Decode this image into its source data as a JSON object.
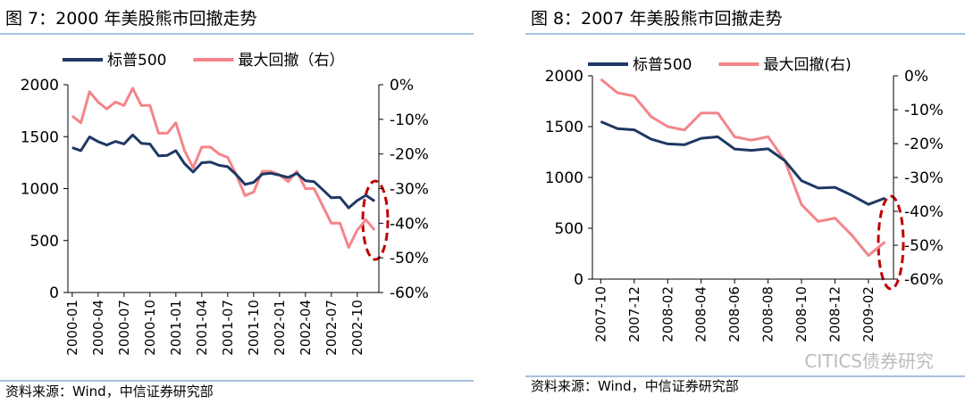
{
  "chart_data": [
    {
      "type": "line",
      "title": "图 7：2000 年美股熊市回撤走势",
      "categories": [
        "2000-01",
        null,
        null,
        "2000-04",
        null,
        null,
        "2000-07",
        null,
        null,
        "2000-10",
        null,
        null,
        "2001-01",
        null,
        null,
        "2001-04",
        null,
        null,
        "2001-07",
        null,
        null,
        "2001-10",
        null,
        null,
        "2002-01",
        null,
        null,
        "2002-04",
        null,
        null,
        "2002-07",
        null,
        null,
        "2002-10",
        null,
        null
      ],
      "series": [
        {
          "name": "标普500",
          "color": "#1f3864",
          "values": [
            1394,
            1366,
            1498,
            1452,
            1420,
            1454,
            1430,
            1517,
            1436,
            1429,
            1315,
            1320,
            1366,
            1240,
            1160,
            1249,
            1256,
            1224,
            1211,
            1134,
            1040,
            1060,
            1139,
            1148,
            1130,
            1107,
            1147,
            1076,
            1067,
            990,
            912,
            916,
            815,
            885,
            936,
            880
          ]
        },
        {
          "name": "最大回撤（右）",
          "color": "#f4858a",
          "axis": "y2",
          "values": [
            -9,
            -11,
            -2,
            -5,
            -7,
            -5,
            -6,
            -1,
            -6,
            -6,
            -14,
            -14,
            -11,
            -19,
            -24,
            -18,
            -18,
            -20,
            -21,
            -26,
            -32,
            -31,
            -25,
            -25,
            -26,
            -28,
            -25,
            -30,
            -30,
            -35,
            -40,
            -40,
            -47,
            -42,
            -39,
            -42
          ]
        }
      ],
      "ylim": [
        0,
        2000
      ],
      "yticks": [
        0,
        500,
        1000,
        1500,
        2000
      ],
      "y2lim": [
        -60,
        0
      ],
      "y2ticks": [
        {
          "value": -60,
          "label": "-60%"
        },
        {
          "value": -50,
          "label": "-50%"
        },
        {
          "value": -40,
          "label": "-40%"
        },
        {
          "value": -30,
          "label": "-30%"
        },
        {
          "value": -20,
          "label": "-20%"
        },
        {
          "value": -10,
          "label": "-10%"
        },
        {
          "value": 0,
          "label": "0%"
        }
      ],
      "legend": "top",
      "source": "资料来源：Wind，中信证券研究部"
    },
    {
      "type": "line",
      "title": "图 8：2007 年美股熊市回撤走势",
      "categories": [
        "2007-10",
        null,
        "2007-12",
        null,
        "2008-02",
        null,
        "2008-04",
        null,
        "2008-06",
        null,
        "2008-08",
        null,
        "2008-10",
        null,
        "2008-12",
        null,
        "2009-02",
        null
      ],
      "series": [
        {
          "name": "标普500",
          "color": "#1f3864",
          "values": [
            1549,
            1481,
            1468,
            1378,
            1330,
            1322,
            1385,
            1400,
            1280,
            1267,
            1282,
            1166,
            968,
            896,
            903,
            825,
            735,
            797
          ]
        },
        {
          "name": "最大回撤(右)",
          "color": "#f4858a",
          "axis": "y2",
          "values": [
            -1,
            -5,
            -6,
            -12,
            -15,
            -16,
            -11,
            -11,
            -18,
            -19,
            -18,
            -25,
            -38,
            -43,
            -42,
            -47,
            -53,
            -49
          ]
        }
      ],
      "ylim": [
        0,
        2000
      ],
      "yticks": [
        0,
        500,
        1000,
        1500,
        2000
      ],
      "y2lim": [
        -60,
        0
      ],
      "y2ticks": [
        {
          "value": -60,
          "label": "-60%"
        },
        {
          "value": -50,
          "label": "-50%"
        },
        {
          "value": -40,
          "label": "-40%"
        },
        {
          "value": -30,
          "label": "-30%"
        },
        {
          "value": -20,
          "label": "-20%"
        },
        {
          "value": -10,
          "label": "-10%"
        },
        {
          "value": 0,
          "label": "0%"
        }
      ],
      "legend": "top",
      "source": "资料来源：Wind，中信证券研究部"
    }
  ],
  "watermark": "CITICS债券研究"
}
